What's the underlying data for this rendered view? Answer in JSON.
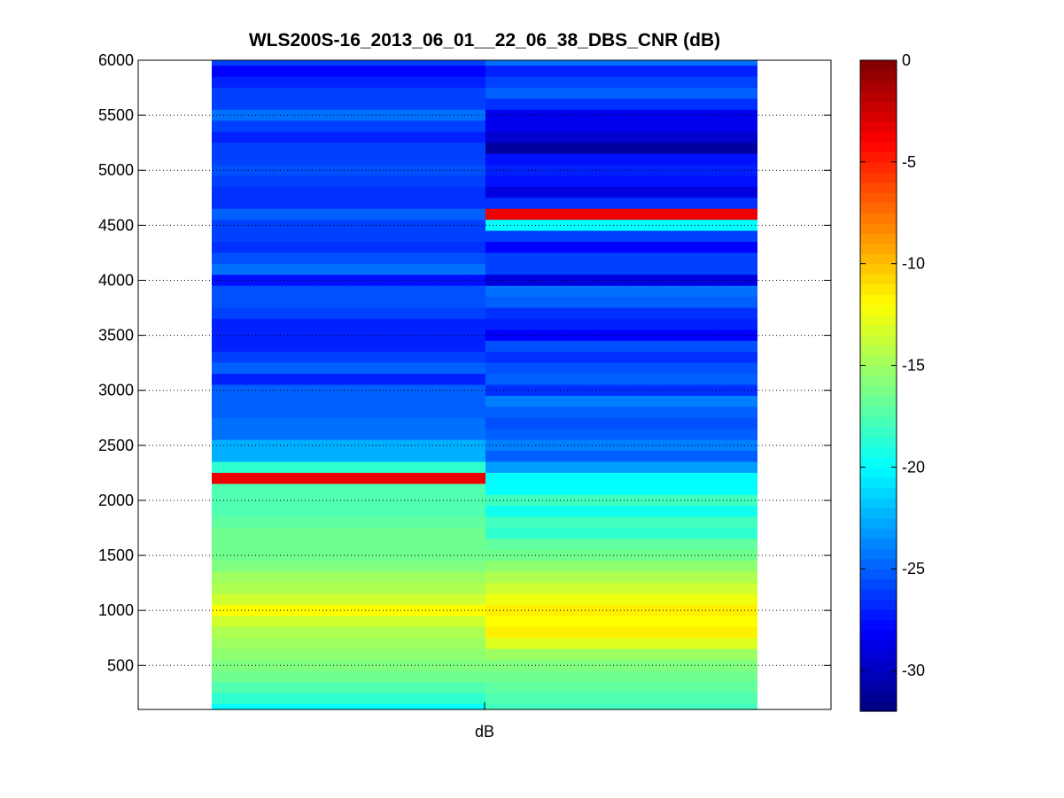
{
  "chart_data": {
    "type": "heatmap",
    "title": "WLS200S-16_2013_06_01__22_06_38_DBS_CNR (dB)",
    "xlabel": "dB",
    "ylabel": "",
    "ylim": [
      100,
      6000
    ],
    "yticks": [
      500,
      1000,
      1500,
      2000,
      2500,
      3000,
      3500,
      4000,
      4500,
      5000,
      5500,
      6000
    ],
    "grid": "y-dotted",
    "colormap": "jet",
    "clim": [
      -32,
      0
    ],
    "colorbar": {
      "placement": "right",
      "ticks": [
        0,
        -5,
        -10,
        -15,
        -20,
        -25,
        -30
      ]
    },
    "y_bin_step": 100,
    "columns": [
      {
        "values": [
          [
            6000,
            -26
          ],
          [
            5900,
            -28
          ],
          [
            5800,
            -27
          ],
          [
            5700,
            -26
          ],
          [
            5600,
            -26
          ],
          [
            5500,
            -24.5
          ],
          [
            5400,
            -26
          ],
          [
            5300,
            -27
          ],
          [
            5200,
            -26
          ],
          [
            5100,
            -26
          ],
          [
            5000,
            -25.5
          ],
          [
            4900,
            -26
          ],
          [
            4800,
            -26.5
          ],
          [
            4700,
            -26.5
          ],
          [
            4600,
            -25
          ],
          [
            4500,
            -26
          ],
          [
            4400,
            -26
          ],
          [
            4300,
            -26.5
          ],
          [
            4200,
            -25.5
          ],
          [
            4100,
            -24.5
          ],
          [
            4000,
            -27.5
          ],
          [
            3900,
            -25.5
          ],
          [
            3800,
            -25.5
          ],
          [
            3700,
            -26
          ],
          [
            3600,
            -27
          ],
          [
            3500,
            -27
          ],
          [
            3400,
            -27
          ],
          [
            3300,
            -26
          ],
          [
            3200,
            -25
          ],
          [
            3100,
            -27
          ],
          [
            3000,
            -25
          ],
          [
            2900,
            -25
          ],
          [
            2800,
            -25
          ],
          [
            2700,
            -24.5
          ],
          [
            2600,
            -24.5
          ],
          [
            2500,
            -22.5
          ],
          [
            2400,
            -22.5
          ],
          [
            2300,
            -18.5
          ],
          [
            2200,
            -3.5
          ],
          [
            2100,
            -17.5
          ],
          [
            2000,
            -17.5
          ],
          [
            1900,
            -17.5
          ],
          [
            1800,
            -17
          ],
          [
            1700,
            -16.5
          ],
          [
            1600,
            -16.5
          ],
          [
            1500,
            -16.5
          ],
          [
            1400,
            -16
          ],
          [
            1300,
            -15
          ],
          [
            1200,
            -14.5
          ],
          [
            1100,
            -13.5
          ],
          [
            1000,
            -12
          ],
          [
            900,
            -13.5
          ],
          [
            800,
            -14.5
          ],
          [
            700,
            -15
          ],
          [
            600,
            -15.5
          ],
          [
            500,
            -16
          ],
          [
            400,
            -16.5
          ],
          [
            300,
            -17.5
          ],
          [
            200,
            -18.5
          ],
          [
            100,
            -20
          ]
        ]
      },
      {
        "values": [
          [
            6000,
            -24.5
          ],
          [
            5900,
            -27
          ],
          [
            5800,
            -26
          ],
          [
            5700,
            -25
          ],
          [
            5600,
            -26.5
          ],
          [
            5500,
            -28.5
          ],
          [
            5400,
            -28.5
          ],
          [
            5300,
            -29.5
          ],
          [
            5200,
            -31
          ],
          [
            5100,
            -27.5
          ],
          [
            5000,
            -27
          ],
          [
            4900,
            -27.5
          ],
          [
            4800,
            -29
          ],
          [
            4700,
            -26.5
          ],
          [
            4600,
            -3.5
          ],
          [
            4500,
            -20
          ],
          [
            4400,
            -26
          ],
          [
            4300,
            -28
          ],
          [
            4200,
            -26
          ],
          [
            4100,
            -26
          ],
          [
            4000,
            -29
          ],
          [
            3900,
            -24.5
          ],
          [
            3800,
            -25
          ],
          [
            3700,
            -26.5
          ],
          [
            3600,
            -27
          ],
          [
            3500,
            -28
          ],
          [
            3400,
            -25.5
          ],
          [
            3300,
            -26.5
          ],
          [
            3200,
            -25.5
          ],
          [
            3100,
            -25
          ],
          [
            3000,
            -26.5
          ],
          [
            2900,
            -24
          ],
          [
            2800,
            -25
          ],
          [
            2700,
            -25.5
          ],
          [
            2600,
            -25
          ],
          [
            2500,
            -24
          ],
          [
            2400,
            -25
          ],
          [
            2300,
            -23
          ],
          [
            2200,
            -20
          ],
          [
            2100,
            -20
          ],
          [
            2000,
            -18
          ],
          [
            1900,
            -19.5
          ],
          [
            1800,
            -18
          ],
          [
            1700,
            -18.5
          ],
          [
            1600,
            -17
          ],
          [
            1500,
            -16.5
          ],
          [
            1400,
            -15.5
          ],
          [
            1300,
            -14.5
          ],
          [
            1200,
            -13.5
          ],
          [
            1100,
            -12.5
          ],
          [
            1000,
            -11.5
          ],
          [
            900,
            -12
          ],
          [
            800,
            -11.5
          ],
          [
            700,
            -13
          ],
          [
            600,
            -15
          ],
          [
            500,
            -16
          ],
          [
            400,
            -16.5
          ],
          [
            300,
            -17
          ],
          [
            200,
            -17.5
          ],
          [
            100,
            -18
          ]
        ]
      }
    ]
  }
}
